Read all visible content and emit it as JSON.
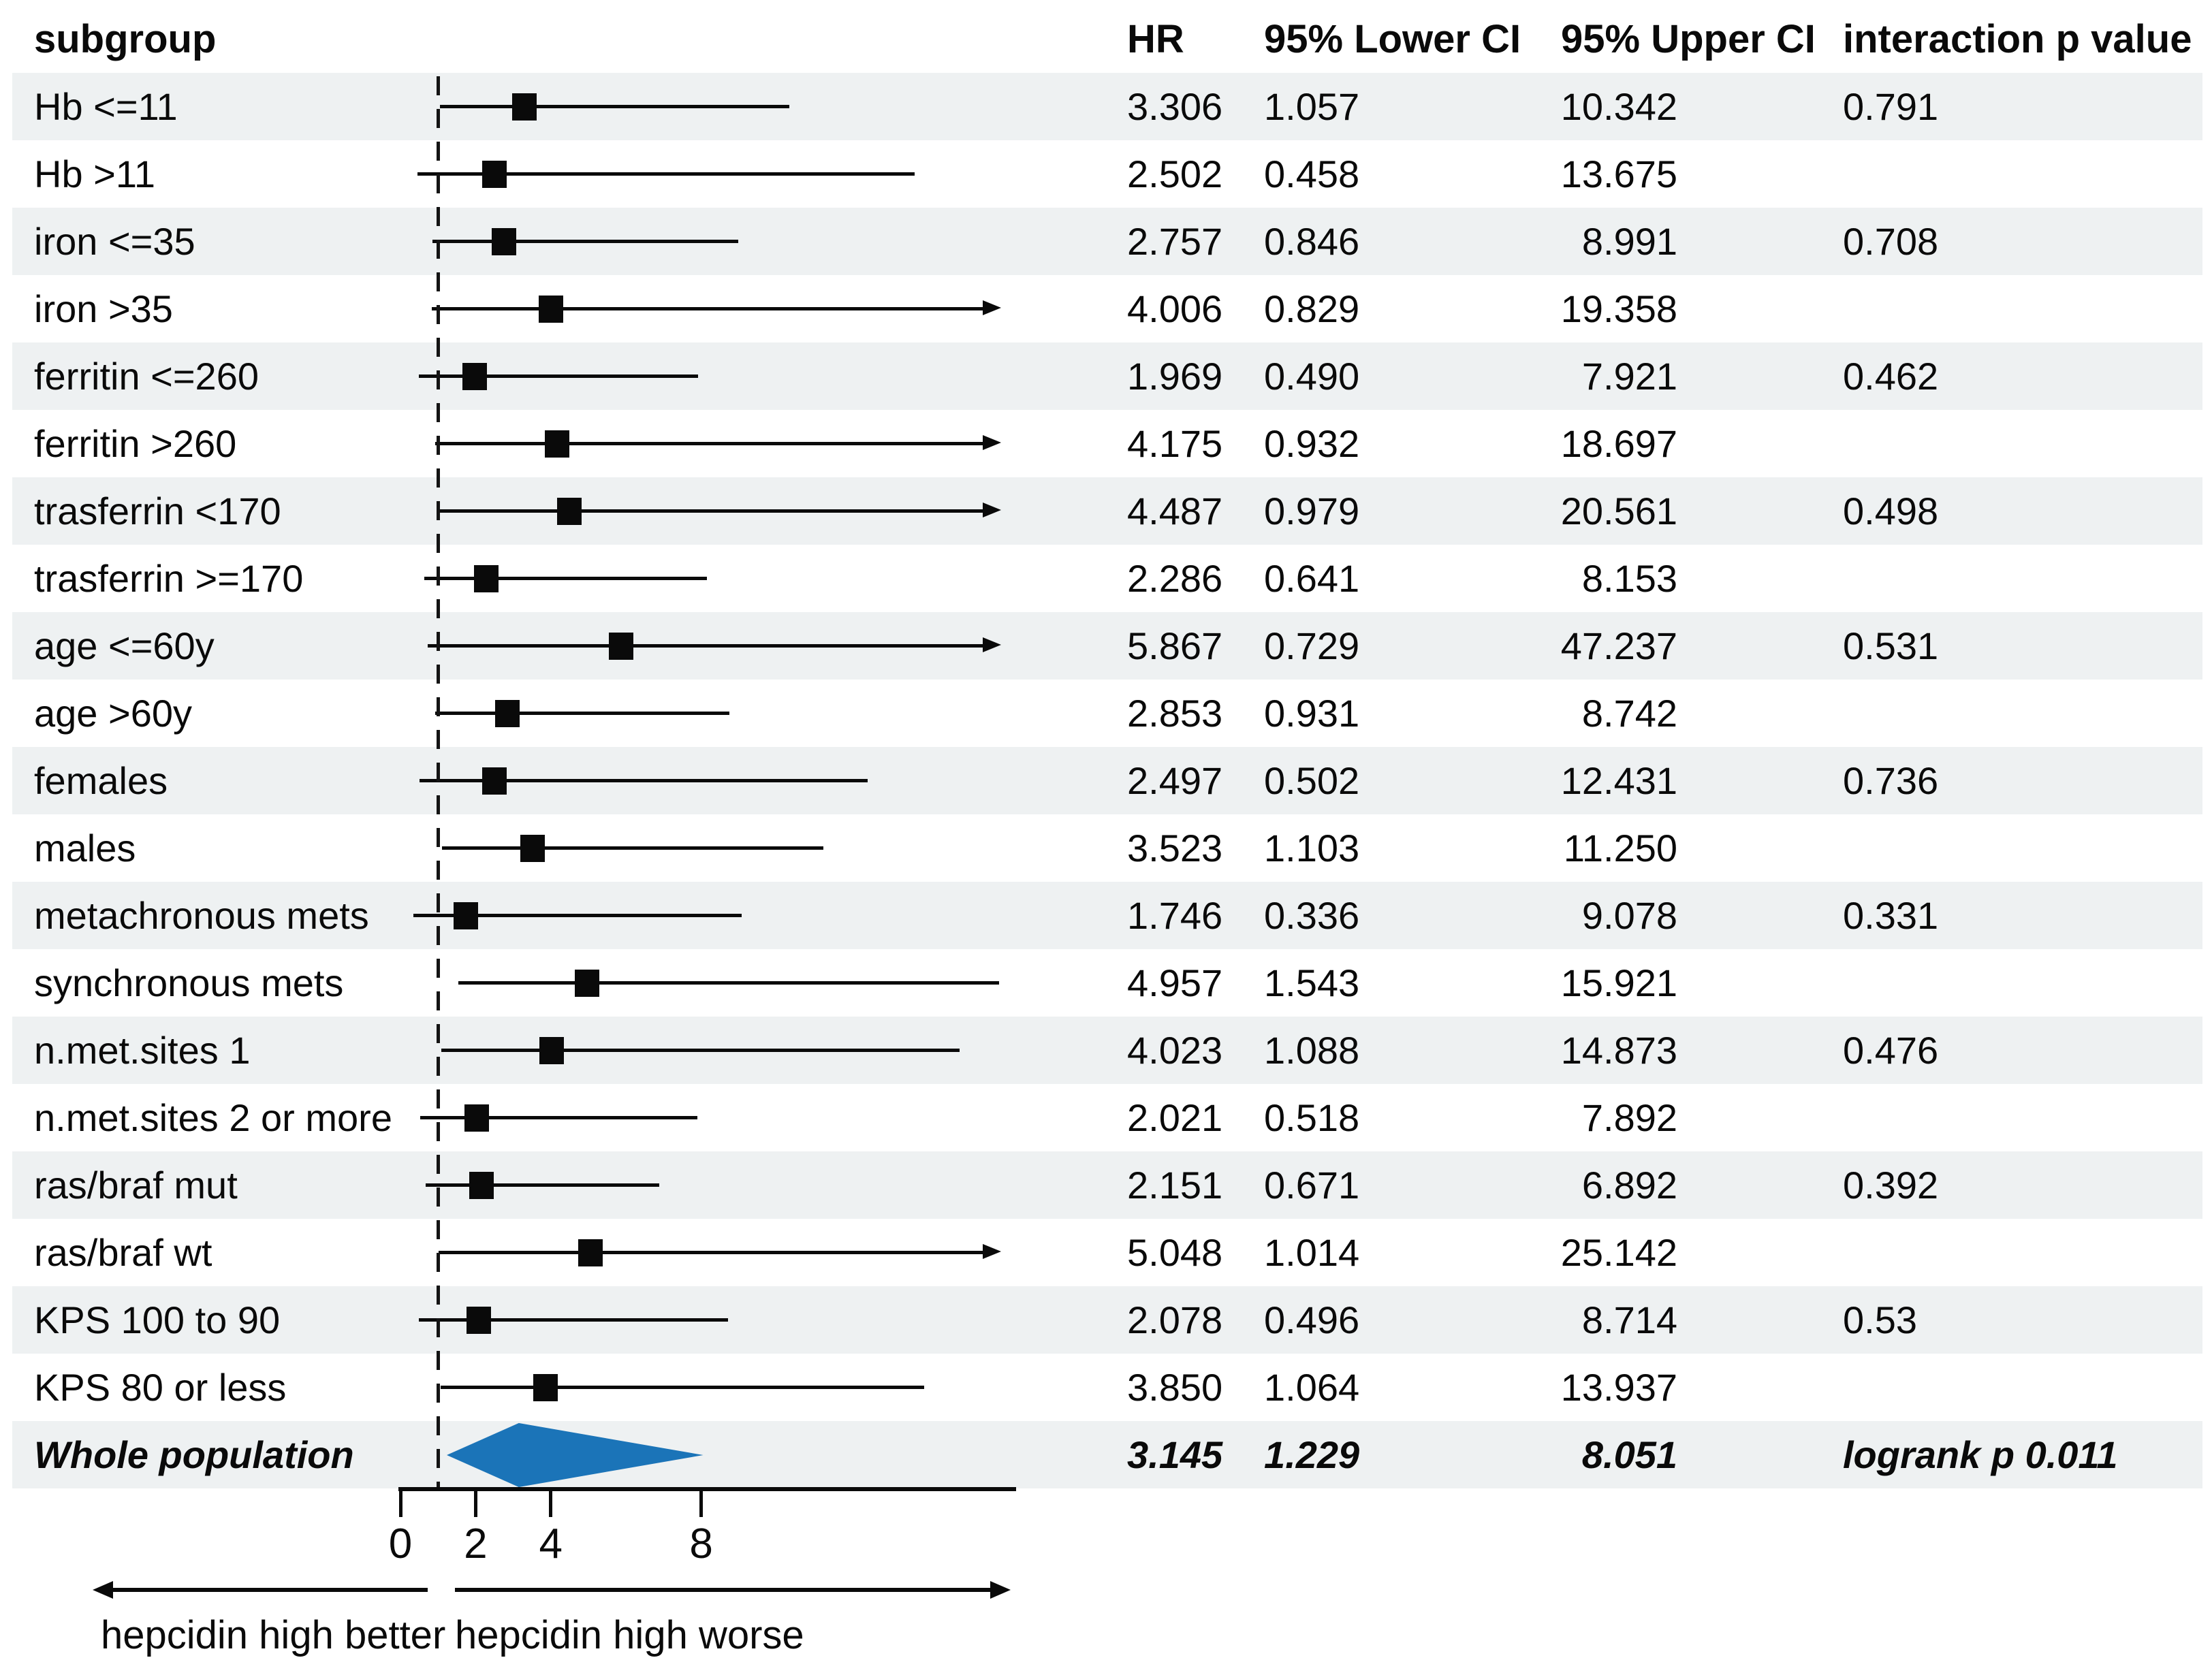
{
  "columns": {
    "subgroup": "subgroup",
    "hr": "HR",
    "lower": "95% Lower CI",
    "upper": "95% Upper CI",
    "pvalue": "interaction p value"
  },
  "chart_data": {
    "type": "forest",
    "x_axis": {
      "scale": "linear",
      "range": [
        0,
        16
      ],
      "ticks": [
        0,
        2,
        4,
        8
      ],
      "reference_line": 1,
      "direction_labels": {
        "left": "hepcidin high better",
        "right": "hepcidin high worse"
      }
    },
    "rows": [
      {
        "label": "Hb <=11",
        "hr": "3.306",
        "lower": "1.057",
        "upper": "10.342",
        "p": "0.791"
      },
      {
        "label": "Hb >11",
        "hr": "2.502",
        "lower": "0.458",
        "upper": "13.675"
      },
      {
        "label": "iron <=35",
        "hr": "2.757",
        "lower": "0.846",
        "upper": "8.991",
        "p": "0.708"
      },
      {
        "label": "iron >35",
        "hr": "4.006",
        "lower": "0.829",
        "upper": "19.358"
      },
      {
        "label": "ferritin <=260",
        "hr": "1.969",
        "lower": "0.490",
        "upper": "7.921",
        "p": "0.462"
      },
      {
        "label": "ferritin >260",
        "hr": "4.175",
        "lower": "0.932",
        "upper": "18.697"
      },
      {
        "label": "trasferrin <170",
        "hr": "4.487",
        "lower": "0.979",
        "upper": "20.561",
        "p": "0.498"
      },
      {
        "label": "trasferrin >=170",
        "hr": "2.286",
        "lower": "0.641",
        "upper": "8.153"
      },
      {
        "label": "age <=60y",
        "hr": "5.867",
        "lower": "0.729",
        "upper": "47.237",
        "p": "0.531"
      },
      {
        "label": "age >60y",
        "hr": "2.853",
        "lower": "0.931",
        "upper": "8.742"
      },
      {
        "label": "females",
        "hr": "2.497",
        "lower": "0.502",
        "upper": "12.431",
        "p": "0.736"
      },
      {
        "label": "males",
        "hr": "3.523",
        "lower": "1.103",
        "upper": "11.250"
      },
      {
        "label": "metachronous mets",
        "hr": "1.746",
        "lower": "0.336",
        "upper": "9.078",
        "p": "0.331"
      },
      {
        "label": "synchronous mets",
        "hr": "4.957",
        "lower": "1.543",
        "upper": "15.921"
      },
      {
        "label": "n.met.sites 1",
        "hr": "4.023",
        "lower": "1.088",
        "upper": "14.873",
        "p": "0.476"
      },
      {
        "label": "n.met.sites 2 or more",
        "hr": "2.021",
        "lower": "0.518",
        "upper": "7.892"
      },
      {
        "label": "ras/braf mut",
        "hr": "2.151",
        "lower": "0.671",
        "upper": "6.892",
        "p": "0.392"
      },
      {
        "label": "ras/braf wt",
        "hr": "5.048",
        "lower": "1.014",
        "upper": "25.142"
      },
      {
        "label": "KPS 100 to 90",
        "hr": "2.078",
        "lower": "0.496",
        "upper": "8.714",
        "p": "0.53"
      },
      {
        "label": "KPS 80 or less",
        "hr": "3.850",
        "lower": "1.064",
        "upper": "13.937"
      },
      {
        "label": "Whole population",
        "hr": "3.145",
        "lower": "1.229",
        "upper": "8.051",
        "p": "logrank p 0.011",
        "summary": true
      }
    ]
  },
  "colors": {
    "stripe": "#eef1f2",
    "diamond": "#1b74b8",
    "marker": "#0a0a0a"
  }
}
